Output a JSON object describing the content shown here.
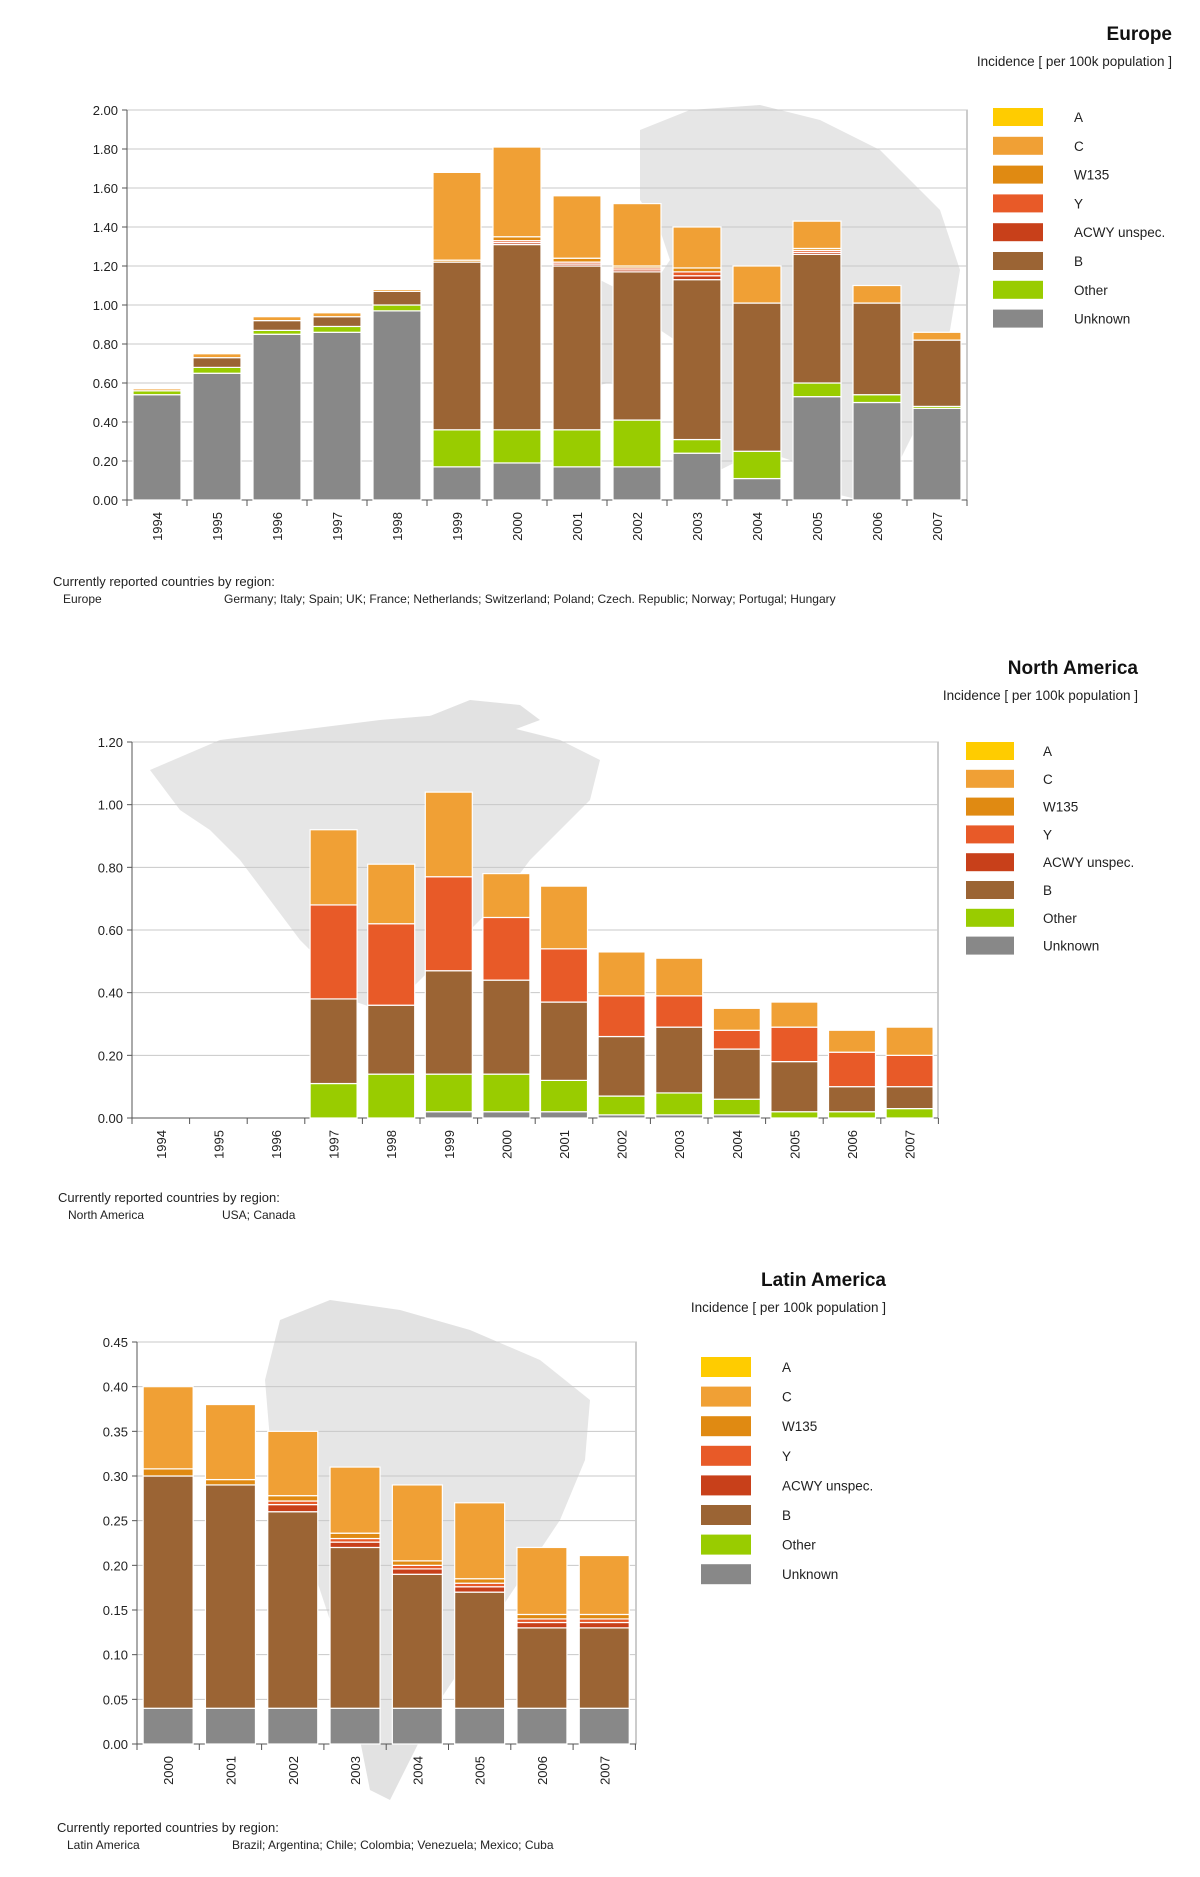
{
  "colors": {
    "A": "#ffcc00",
    "C": "#f0a035",
    "W135": "#e08a12",
    "Y": "#e85a28",
    "ACWY unspec.": "#c8401a",
    "B": "#9b6434",
    "Other": "#99cc00",
    "Unknown": "#888888"
  },
  "chart_data": [
    {
      "id": "europe",
      "type": "bar",
      "stacked": true,
      "title": "Europe",
      "subtitle": "Incidence [ per 100k population ]",
      "ylim": [
        0,
        2.0
      ],
      "yticks": [
        "0.00",
        "0.20",
        "0.40",
        "0.60",
        "0.80",
        "1.00",
        "1.20",
        "1.40",
        "1.60",
        "1.80",
        "2.00"
      ],
      "categories": [
        "1994",
        "1995",
        "1996",
        "1997",
        "1998",
        "1999",
        "2000",
        "2001",
        "2002",
        "2003",
        "2004",
        "2005",
        "2006",
        "2007"
      ],
      "legend": [
        "A",
        "C",
        "W135",
        "Y",
        "ACWY unspec.",
        "B",
        "Other",
        "Unknown"
      ],
      "series": [
        {
          "name": "Unknown",
          "values": [
            0.54,
            0.65,
            0.85,
            0.86,
            0.97,
            0.17,
            0.19,
            0.17,
            0.17,
            0.24,
            0.11,
            0.53,
            0.5,
            0.47
          ]
        },
        {
          "name": "Other",
          "values": [
            0.02,
            0.03,
            0.02,
            0.03,
            0.03,
            0.19,
            0.17,
            0.19,
            0.24,
            0.07,
            0.14,
            0.07,
            0.04,
            0.01
          ]
        },
        {
          "name": "B",
          "values": [
            0.0,
            0.05,
            0.05,
            0.05,
            0.07,
            0.86,
            0.95,
            0.84,
            0.76,
            0.82,
            0.76,
            0.66,
            0.47,
            0.34
          ]
        },
        {
          "name": "ACWY unspec.",
          "values": [
            0,
            0,
            0,
            0,
            0,
            0,
            0.01,
            0.01,
            0.01,
            0.02,
            0,
            0.01,
            0,
            0
          ]
        },
        {
          "name": "Y",
          "values": [
            0,
            0,
            0,
            0,
            0,
            0,
            0.01,
            0.01,
            0.01,
            0.02,
            0,
            0.01,
            0,
            0
          ]
        },
        {
          "name": "W135",
          "values": [
            0,
            0,
            0,
            0,
            0,
            0.01,
            0.02,
            0.02,
            0.01,
            0.02,
            0,
            0.01,
            0,
            0
          ]
        },
        {
          "name": "C",
          "values": [
            0.01,
            0.02,
            0.02,
            0.02,
            0.01,
            0.45,
            0.46,
            0.32,
            0.32,
            0.21,
            0.19,
            0.14,
            0.09,
            0.04
          ]
        },
        {
          "name": "A",
          "values": [
            0,
            0,
            0,
            0,
            0,
            0,
            0,
            0,
            0,
            0,
            0,
            0,
            0,
            0
          ]
        }
      ],
      "footnote_header": "Currently reported countries by region:",
      "region_name": "Europe",
      "region_countries": "Germany; Italy; Spain; UK; France; Netherlands; Switzerland; Poland; Czech. Republic; Norway; Portugal; Hungary"
    },
    {
      "id": "north-america",
      "type": "bar",
      "stacked": true,
      "title": "North America",
      "subtitle": "Incidence [ per 100k population ]",
      "ylim": [
        0,
        1.2
      ],
      "yticks": [
        "0.00",
        "0.20",
        "0.40",
        "0.60",
        "0.80",
        "1.00",
        "1.20"
      ],
      "categories": [
        "1994",
        "1995",
        "1996",
        "1997",
        "1998",
        "1999",
        "2000",
        "2001",
        "2002",
        "2003",
        "2004",
        "2005",
        "2006",
        "2007"
      ],
      "legend": [
        "A",
        "C",
        "W135",
        "Y",
        "ACWY unspec.",
        "B",
        "Other",
        "Unknown"
      ],
      "series": [
        {
          "name": "Unknown",
          "values": [
            0,
            0,
            0,
            0,
            0,
            0.02,
            0.02,
            0.02,
            0.01,
            0.01,
            0.01,
            0,
            0,
            0
          ]
        },
        {
          "name": "Other",
          "values": [
            0,
            0,
            0,
            0.11,
            0.14,
            0.12,
            0.12,
            0.1,
            0.06,
            0.07,
            0.05,
            0.02,
            0.02,
            0.03
          ]
        },
        {
          "name": "B",
          "values": [
            0,
            0,
            0,
            0.27,
            0.22,
            0.33,
            0.3,
            0.25,
            0.19,
            0.21,
            0.16,
            0.16,
            0.08,
            0.07
          ]
        },
        {
          "name": "ACWY unspec.",
          "values": [
            0,
            0,
            0,
            0,
            0,
            0,
            0,
            0,
            0,
            0,
            0,
            0,
            0,
            0
          ]
        },
        {
          "name": "Y",
          "values": [
            0,
            0,
            0,
            0.3,
            0.26,
            0.3,
            0.2,
            0.17,
            0.13,
            0.1,
            0.06,
            0.11,
            0.11,
            0.1
          ]
        },
        {
          "name": "W135",
          "values": [
            0,
            0,
            0,
            0,
            0,
            0,
            0,
            0,
            0,
            0,
            0,
            0,
            0,
            0
          ]
        },
        {
          "name": "C",
          "values": [
            0,
            0,
            0,
            0.24,
            0.19,
            0.27,
            0.14,
            0.2,
            0.14,
            0.12,
            0.07,
            0.08,
            0.07,
            0.09
          ]
        },
        {
          "name": "A",
          "values": [
            0,
            0,
            0,
            0,
            0,
            0,
            0,
            0,
            0,
            0,
            0,
            0,
            0,
            0
          ]
        }
      ],
      "footnote_header": "Currently reported countries by region:",
      "region_name": "North America",
      "region_countries": "USA; Canada"
    },
    {
      "id": "latin-america",
      "type": "bar",
      "stacked": true,
      "title": "Latin America",
      "subtitle": "Incidence [ per 100k population ]",
      "ylim": [
        0,
        0.45
      ],
      "yticks": [
        "0.00",
        "0.05",
        "0.10",
        "0.15",
        "0.20",
        "0.25",
        "0.30",
        "0.35",
        "0.40",
        "0.45"
      ],
      "categories": [
        "2000",
        "2001",
        "2002",
        "2003",
        "2004",
        "2005",
        "2006",
        "2007"
      ],
      "legend": [
        "A",
        "C",
        "W135",
        "Y",
        "ACWY unspec.",
        "B",
        "Other",
        "Unknown"
      ],
      "series": [
        {
          "name": "Unknown",
          "values": [
            0.04,
            0.04,
            0.04,
            0.04,
            0.04,
            0.04,
            0.04,
            0.04
          ]
        },
        {
          "name": "Other",
          "values": [
            0,
            0,
            0,
            0,
            0,
            0,
            0,
            0
          ]
        },
        {
          "name": "B",
          "values": [
            0.26,
            0.25,
            0.22,
            0.18,
            0.15,
            0.13,
            0.09,
            0.09
          ]
        },
        {
          "name": "ACWY unspec.",
          "values": [
            0,
            0,
            0.008,
            0.006,
            0.006,
            0.006,
            0.006,
            0.006
          ]
        },
        {
          "name": "Y",
          "values": [
            0,
            0,
            0.004,
            0.004,
            0.004,
            0.004,
            0.004,
            0.004
          ]
        },
        {
          "name": "W135",
          "values": [
            0.008,
            0.006,
            0.006,
            0.006,
            0.005,
            0.005,
            0.005,
            0.005
          ]
        },
        {
          "name": "C",
          "values": [
            0.092,
            0.084,
            0.072,
            0.074,
            0.085,
            0.085,
            0.075,
            0.066
          ]
        },
        {
          "name": "A",
          "values": [
            0,
            0,
            0,
            0,
            0,
            0,
            0,
            0
          ]
        }
      ],
      "footnote_header": "Currently reported countries by region:",
      "region_name": "Latin America",
      "region_countries": "Brazil; Argentina; Chile; Colombia; Venezuela; Mexico; Cuba"
    }
  ]
}
